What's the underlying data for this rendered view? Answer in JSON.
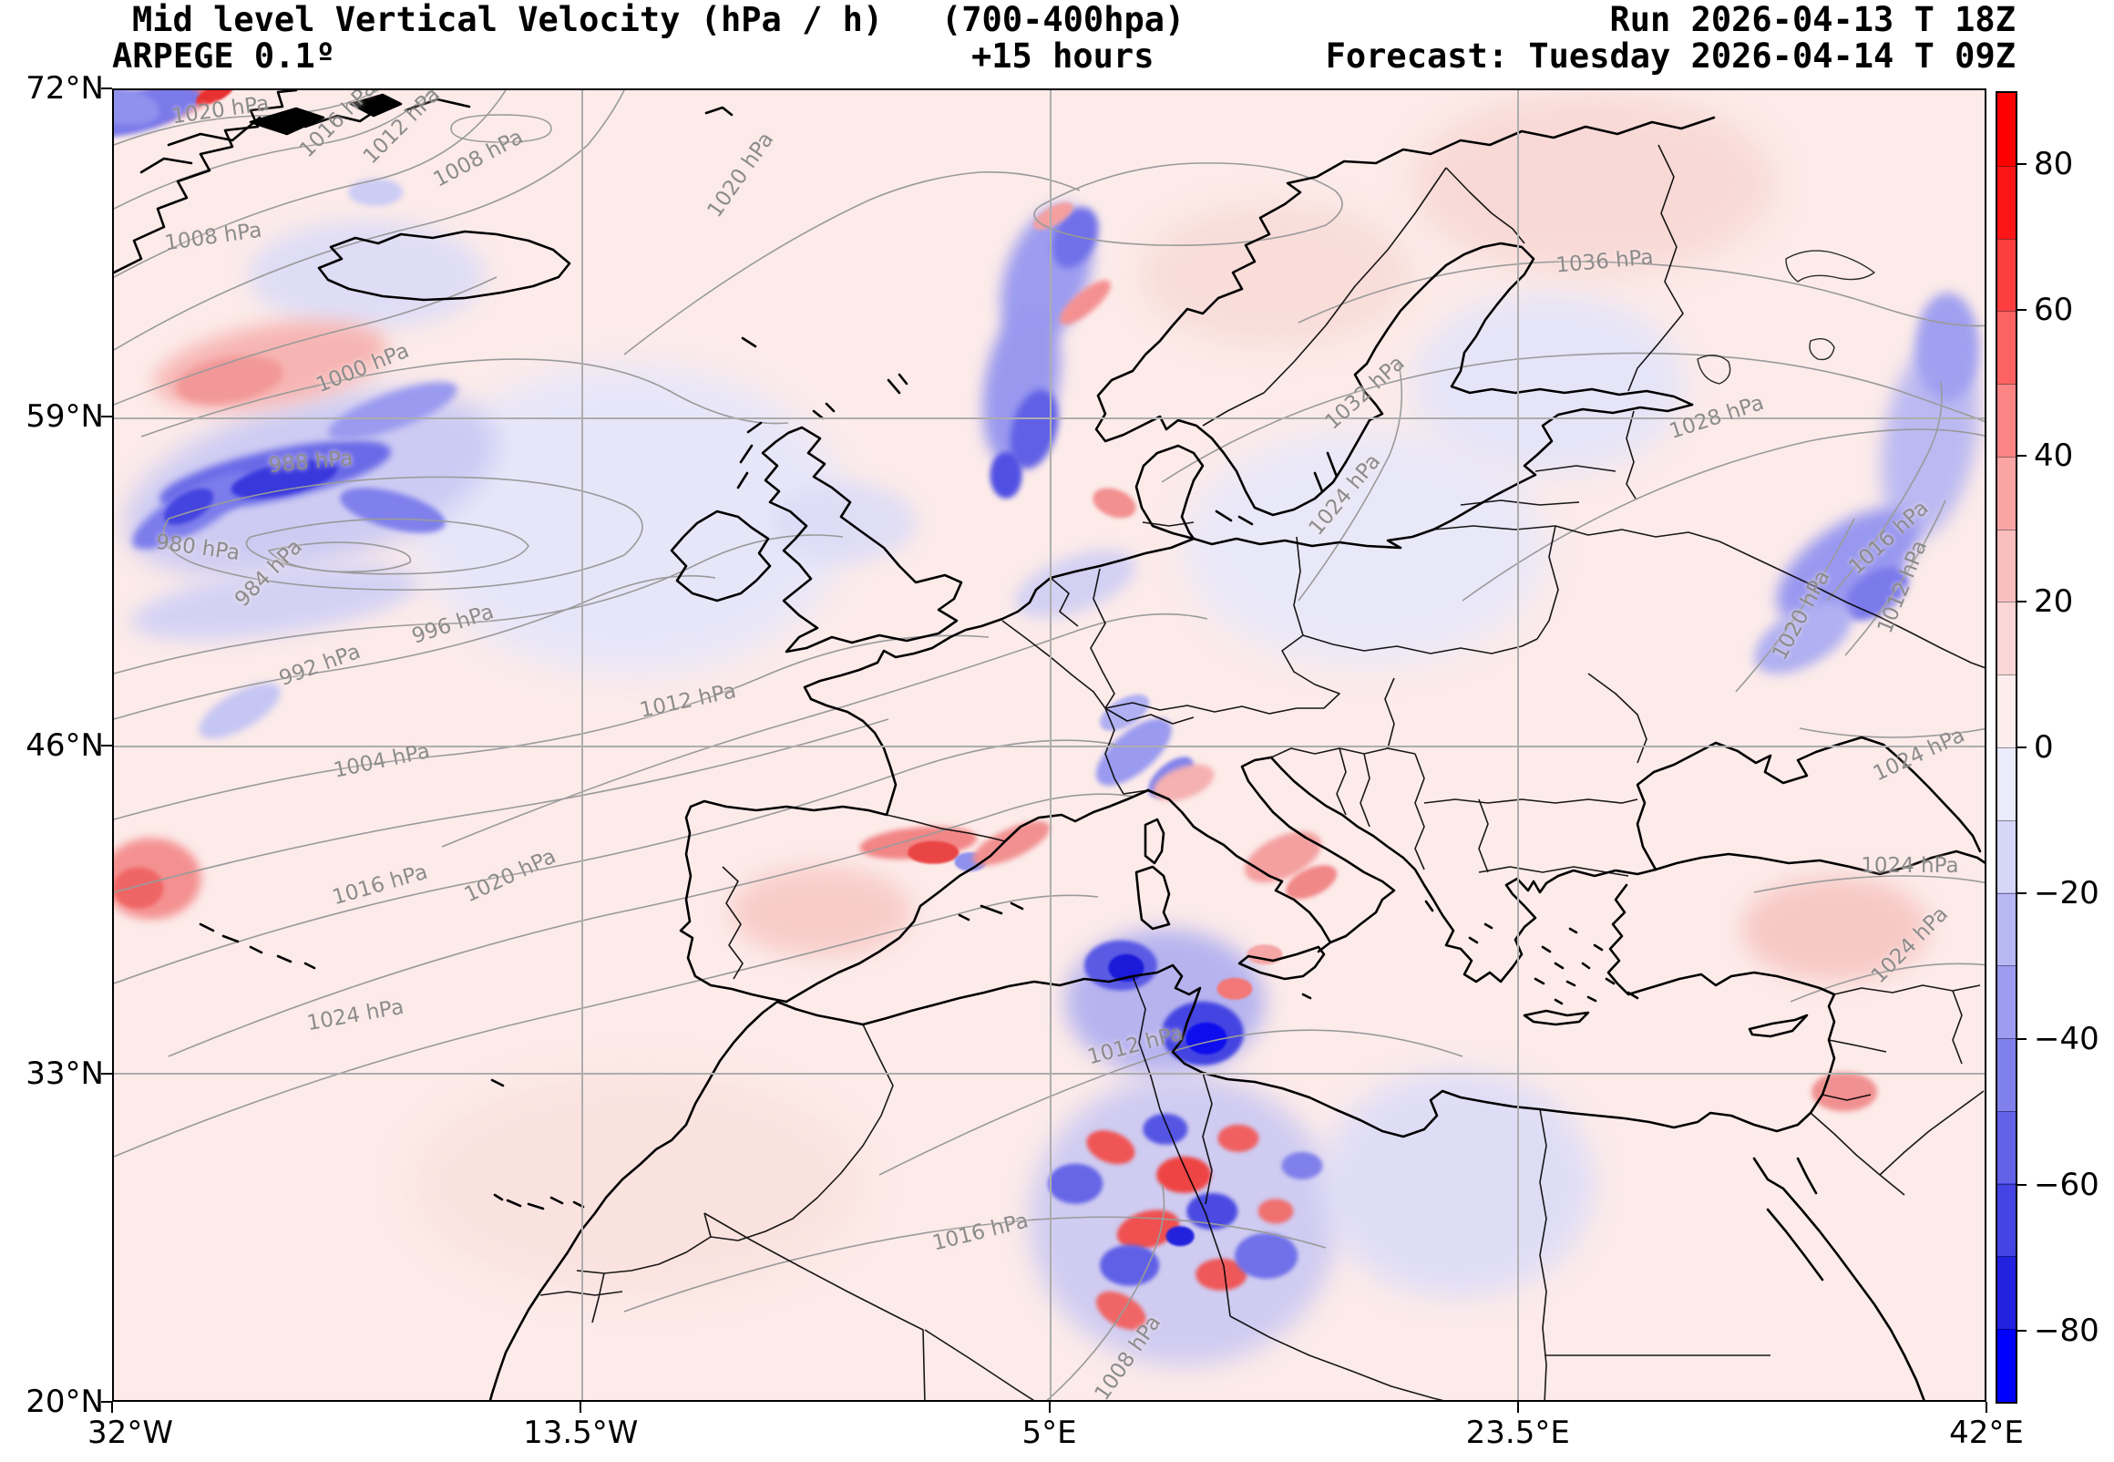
{
  "header": {
    "title": "Mid level Vertical Velocity (hPa / h)",
    "level_range": "(700-400hpa)",
    "run": "Run 2026-04-13 T 18Z",
    "model": "ARPEGE 0.1º",
    "lead_time": "+15 hours",
    "forecast": "Forecast: Tuesday 2026-04-14 T 09Z"
  },
  "chart_data": {
    "type": "heatmap",
    "title": "Mid level Vertical Velocity (hPa / h) (700-400hpa)",
    "model": "ARPEGE 0.1º",
    "run": "2026-04-13 T 18Z",
    "lead_hours": "+15 hours",
    "valid": "Tuesday 2026-04-14 T 09Z",
    "units": "hPa / h",
    "x_ticks": [
      "32°W",
      "13.5°W",
      "5°E",
      "23.5°E",
      "42°E"
    ],
    "y_ticks": [
      "72°N",
      "59°N",
      "46°N",
      "33°N",
      "20°N"
    ],
    "grid": true,
    "colorbar": {
      "range": [
        -90,
        90
      ],
      "tick_values": [
        80,
        60,
        40,
        20,
        0,
        -20,
        -40,
        -60,
        -80
      ],
      "tick_labels": [
        "80",
        "60",
        "40",
        "20",
        "0",
        "−20",
        "−40",
        "−60",
        "−80"
      ],
      "band_colors_top_to_bottom": [
        "#fe0000",
        "#fe1616",
        "#fd3e3e",
        "#fc6262",
        "#fb8484",
        "#faa4a4",
        "#fabebe",
        "#fbd6d6",
        "#fdedec",
        "#ebebfb",
        "#d6d6f8",
        "#b8b8f4",
        "#9c9cf0",
        "#8080ec",
        "#6262e8",
        "#4444e4",
        "#2222e0",
        "#0000fe"
      ]
    },
    "isobar_labels": [
      {
        "t": "1020 hPa",
        "x": 5.7,
        "y": 1.5,
        "r": -8
      },
      {
        "t": "1016 hPa",
        "x": 12.0,
        "y": 2.2,
        "r": -45
      },
      {
        "t": "1012 hPa",
        "x": 15.4,
        "y": 2.7,
        "r": -45
      },
      {
        "t": "1008 hPa",
        "x": 19.5,
        "y": 5.2,
        "r": -28
      },
      {
        "t": "1008 hPa",
        "x": 5.3,
        "y": 11.2,
        "r": -8
      },
      {
        "t": "1020 hPa",
        "x": 33.5,
        "y": 6.5,
        "r": -55
      },
      {
        "t": "1000 hPa",
        "x": 13.3,
        "y": 21.2,
        "r": -22
      },
      {
        "t": "988 hPa",
        "x": 10.5,
        "y": 28.4,
        "r": -5
      },
      {
        "t": "980 hPa",
        "x": 4.5,
        "y": 34.9,
        "r": 8
      },
      {
        "t": "984 hPa",
        "x": 8.3,
        "y": 36.9,
        "r": -45
      },
      {
        "t": "996 hPa",
        "x": 18.1,
        "y": 40.8,
        "r": -18
      },
      {
        "t": "992 hPa",
        "x": 11.0,
        "y": 43.9,
        "r": -20
      },
      {
        "t": "1004 hPa",
        "x": 14.3,
        "y": 51.2,
        "r": -12
      },
      {
        "t": "1012 hPa",
        "x": 30.7,
        "y": 46.6,
        "r": -12
      },
      {
        "t": "1016 hPa",
        "x": 14.2,
        "y": 60.7,
        "r": -16
      },
      {
        "t": "1020 hPa",
        "x": 21.2,
        "y": 60.0,
        "r": -25
      },
      {
        "t": "1024 hPa",
        "x": 12.9,
        "y": 70.6,
        "r": -10
      },
      {
        "t": "1036 hPa",
        "x": 79.7,
        "y": 13.1,
        "r": -5
      },
      {
        "t": "1032 hPa",
        "x": 66.9,
        "y": 23.1,
        "r": -42
      },
      {
        "t": "1028 hPa",
        "x": 85.7,
        "y": 25.0,
        "r": -18
      },
      {
        "t": "1024 hPa",
        "x": 65.8,
        "y": 30.9,
        "r": -50
      },
      {
        "t": "1012 hPa",
        "x": 54.6,
        "y": 72.9,
        "r": -15
      },
      {
        "t": "1016 hPa",
        "x": 46.3,
        "y": 87.2,
        "r": -14
      },
      {
        "t": "1008 hPa",
        "x": 54.2,
        "y": 96.8,
        "r": -55
      },
      {
        "t": "1016 hPa",
        "x": 94.9,
        "y": 34.2,
        "r": -42
      },
      {
        "t": "1012 hPa",
        "x": 95.6,
        "y": 37.9,
        "r": -68
      },
      {
        "t": "1020 hPa",
        "x": 90.2,
        "y": 40.1,
        "r": -62
      },
      {
        "t": "1024 hPa",
        "x": 96.5,
        "y": 50.7,
        "r": -25
      },
      {
        "t": "1024 hPa",
        "x": 96.0,
        "y": 59.2,
        "r": 0
      },
      {
        "t": "1024 hPa",
        "x": 96.0,
        "y": 65.3,
        "r": -45
      }
    ],
    "features": [
      [
        27.6,
        32.8,
        23.3,
        23.6,
        0,
        "#e6e6fa",
        18,
        0.95
      ],
      [
        13.5,
        14.1,
        12.6,
        8.3,
        0,
        "#dcdcf7",
        12,
        0.9
      ],
      [
        10.5,
        30.0,
        20.4,
        12.5,
        -15,
        "#c8c8f4",
        14,
        0.9
      ],
      [
        8.4,
        21.0,
        12.6,
        6.2,
        -10,
        "#f6b0ae",
        10,
        0.9
      ],
      [
        39.0,
        33.0,
        7.8,
        6.2,
        0,
        "#dcdcf7",
        10,
        0.85
      ],
      [
        51.4,
        37.7,
        6.8,
        4.2,
        -20,
        "#ccccf5",
        8,
        0.85
      ],
      [
        66.9,
        34.9,
        19.4,
        18.0,
        0,
        "#e8e8fa",
        18,
        0.9
      ],
      [
        76.7,
        22.4,
        14.6,
        13.9,
        0,
        "#e4e4f9",
        16,
        0.9
      ],
      [
        62.1,
        14.1,
        14.6,
        11.1,
        0,
        "#f8dcd8",
        16,
        0.9
      ],
      [
        79.1,
        7.1,
        19.4,
        13.9,
        0,
        "#f8d8d4",
        18,
        0.9
      ],
      [
        37.8,
        62.7,
        9.7,
        6.9,
        0,
        "#f8cac6",
        12,
        0.9
      ],
      [
        28.0,
        83.5,
        24.3,
        17.3,
        0,
        "#fae2de",
        18,
        0.9
      ],
      [
        56.2,
        69.6,
        10.7,
        11.1,
        0,
        "#aaaaf1",
        12,
        0.85
      ],
      [
        57.2,
        86.3,
        16.5,
        22.2,
        0,
        "#c4c4f4",
        14,
        0.8
      ],
      [
        71.8,
        83.5,
        14.6,
        17.3,
        0,
        "#dcdcf8",
        16,
        0.9
      ],
      [
        8.6,
        39.1,
        15.6,
        4.9,
        -8,
        "#d0d0f6",
        10,
        0.9
      ],
      [
        97.1,
        26.6,
        4.9,
        15.3,
        10,
        "#b4b4f3",
        10,
        0.9
      ],
      [
        92.0,
        64.0,
        10.0,
        8.0,
        0,
        "#f7c6c2",
        12,
        0.9
      ],
      [
        8.6,
        29.4,
        12.6,
        3.8,
        -12,
        "#6a6ae8",
        4,
        1
      ],
      [
        4.2,
        32.1,
        7.3,
        3.1,
        -30,
        "#7c7cec",
        4,
        1
      ],
      [
        9.1,
        29.7,
        5.8,
        2.4,
        -12,
        "#3838dd",
        2,
        1
      ],
      [
        4.0,
        31.8,
        2.9,
        2.1,
        -30,
        "#4444e0",
        2,
        1
      ],
      [
        14.9,
        32.1,
        5.8,
        2.8,
        15,
        "#8080ec",
        3,
        1
      ],
      [
        14.9,
        24.5,
        7.3,
        2.8,
        -20,
        "#9a9af0",
        4,
        1
      ],
      [
        49.9,
        14.1,
        4.4,
        11.1,
        20,
        "#9c9cf0",
        8,
        1
      ],
      [
        48.5,
        22.4,
        3.9,
        12.5,
        10,
        "#9898ef",
        8,
        1
      ],
      [
        49.2,
        25.9,
        2.4,
        6.2,
        15,
        "#6060e6",
        4,
        1
      ],
      [
        51.4,
        11.3,
        2.2,
        4.9,
        25,
        "#7070e9",
        4,
        1
      ],
      [
        47.7,
        29.4,
        1.7,
        3.5,
        0,
        "#5050e3",
        3,
        1
      ],
      [
        51.9,
        16.2,
        3.4,
        1.7,
        -40,
        "#f59090",
        3,
        1
      ],
      [
        50.2,
        9.6,
        2.4,
        1.4,
        -30,
        "#f4a0a0",
        2,
        1
      ],
      [
        3.3,
        0.6,
        5.8,
        2.8,
        -20,
        "#f07070",
        3,
        1
      ],
      [
        1.3,
        1.6,
        6.8,
        3.1,
        -15,
        "#7a7aea",
        3,
        1
      ],
      [
        0.3,
        1.2,
        4.4,
        2.8,
        10,
        "#9090ee",
        3,
        1
      ],
      [
        5.4,
        0.3,
        2.2,
        1.2,
        -25,
        "#e83030",
        1,
        1
      ],
      [
        14.0,
        7.8,
        2.9,
        2.1,
        0,
        "#ccccf5",
        3,
        1
      ],
      [
        6.2,
        22.1,
        5.8,
        3.5,
        -10,
        "#f29898",
        4,
        1
      ],
      [
        2.0,
        60.2,
        5.3,
        6.2,
        0,
        "#f49090",
        5,
        1
      ],
      [
        1.3,
        60.9,
        2.7,
        3.1,
        0,
        "#ef6565",
        2,
        1
      ],
      [
        6.7,
        47.4,
        4.9,
        2.8,
        -30,
        "#c6c6f4",
        4,
        1
      ],
      [
        53.5,
        31.5,
        2.4,
        2.1,
        20,
        "#f29090",
        2,
        1
      ],
      [
        43.0,
        57.5,
        6.3,
        2.4,
        -5,
        "#f28585",
        3,
        1
      ],
      [
        43.8,
        58.2,
        2.7,
        1.7,
        0,
        "#ea4545",
        1,
        1
      ],
      [
        45.8,
        58.9,
        1.7,
        1.4,
        0,
        "#9090ee",
        1,
        1
      ],
      [
        48.0,
        57.5,
        4.5,
        2.2,
        -25,
        "#f29090",
        3,
        1
      ],
      [
        54.5,
        50.5,
        4.9,
        3.1,
        -40,
        "#9a9af0",
        3,
        1
      ],
      [
        56.5,
        52.5,
        2.9,
        2.1,
        -40,
        "#8484ec",
        2,
        1
      ],
      [
        54.0,
        47.5,
        2.9,
        2.1,
        -30,
        "#b0b0f2",
        2,
        1
      ],
      [
        62.5,
        58.5,
        4.4,
        3.1,
        -25,
        "#f4a0a0",
        3,
        1
      ],
      [
        64.0,
        60.5,
        2.9,
        2.1,
        -25,
        "#f18888",
        2,
        1
      ],
      [
        53.8,
        66.8,
        3.9,
        3.8,
        0,
        "#5a5ae5",
        2,
        1
      ],
      [
        54.1,
        67.0,
        1.9,
        2.1,
        0,
        "#1a1ad8",
        1,
        1
      ],
      [
        58.2,
        72.0,
        4.4,
        4.9,
        0,
        "#4444e2",
        2,
        1
      ],
      [
        58.4,
        72.4,
        2.2,
        2.4,
        0,
        "#0d0dee",
        1,
        1
      ],
      [
        59.9,
        68.6,
        1.9,
        1.7,
        0,
        "#f27878",
        1,
        1
      ],
      [
        61.5,
        66.0,
        1.9,
        1.5,
        0,
        "#f5a6a6",
        1,
        1
      ],
      [
        53.3,
        80.7,
        2.7,
        2.4,
        20,
        "#f05555",
        2,
        1
      ],
      [
        57.2,
        82.8,
        2.9,
        2.8,
        0,
        "#ee4444",
        2,
        1
      ],
      [
        60.1,
        80.0,
        2.2,
        2.1,
        0,
        "#f06060",
        2,
        1
      ],
      [
        55.3,
        87.0,
        3.4,
        2.8,
        -15,
        "#f05050",
        2,
        1
      ],
      [
        59.2,
        90.4,
        2.7,
        2.4,
        0,
        "#ef5858",
        2,
        1
      ],
      [
        53.8,
        93.2,
        2.9,
        2.4,
        30,
        "#f06666",
        2,
        1
      ],
      [
        62.1,
        85.6,
        1.9,
        1.9,
        0,
        "#f07070",
        2,
        1
      ],
      [
        51.4,
        83.5,
        2.9,
        3.1,
        0,
        "#6666e7",
        2,
        1
      ],
      [
        56.2,
        79.3,
        2.4,
        2.4,
        0,
        "#5555e4",
        2,
        1
      ],
      [
        58.7,
        85.6,
        2.7,
        2.8,
        0,
        "#4a4ae2",
        2,
        1
      ],
      [
        54.3,
        89.7,
        3.2,
        3.1,
        0,
        "#6060e6",
        2,
        1
      ],
      [
        61.6,
        89.0,
        3.4,
        3.5,
        0,
        "#7070e9",
        2,
        1
      ],
      [
        63.5,
        82.1,
        2.2,
        2.1,
        0,
        "#8080eb",
        2,
        1
      ],
      [
        57.0,
        87.5,
        1.5,
        1.5,
        0,
        "#2222dc",
        1,
        1
      ],
      [
        92.7,
        36.3,
        8.8,
        6.2,
        -35,
        "#9898f0",
        8,
        1
      ],
      [
        94.2,
        38.4,
        3.9,
        3.1,
        -35,
        "#7a7aeb",
        4,
        1
      ],
      [
        90.3,
        41.8,
        5.8,
        4.2,
        -30,
        "#b0b0f2",
        6,
        1
      ],
      [
        98.0,
        19.6,
        3.4,
        8.3,
        0,
        "#a0a0f0",
        6,
        1
      ],
      [
        57.2,
        52.9,
        3.4,
        2.4,
        -20,
        "#f5b0b0",
        3,
        1
      ],
      [
        92.5,
        76.5,
        3.5,
        3.0,
        0,
        "#f19090",
        3,
        1
      ]
    ]
  }
}
